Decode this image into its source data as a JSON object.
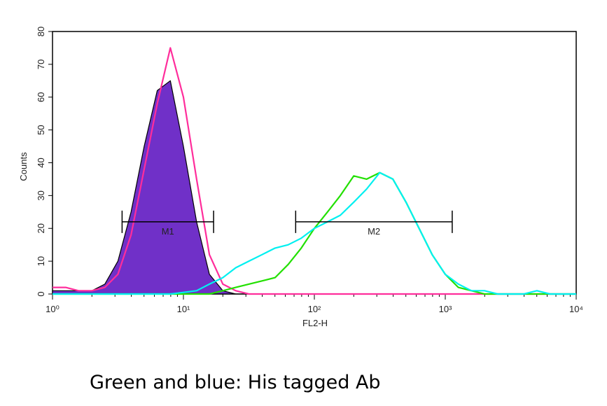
{
  "chart_data": {
    "type": "histogram",
    "xlabel": "FL2-H",
    "ylabel": "Counts",
    "caption": "Green and blue: His tagged Ab",
    "xscale": "log",
    "xlim": [
      1,
      10000
    ],
    "xticks": [
      {
        "value": 1,
        "label": "10⁰"
      },
      {
        "value": 10,
        "label": "10¹"
      },
      {
        "value": 100,
        "label": "10²"
      },
      {
        "value": 1000,
        "label": "10³"
      },
      {
        "value": 10000,
        "label": "10⁴"
      }
    ],
    "ylim": [
      0,
      80
    ],
    "yticks": [
      0,
      10,
      20,
      30,
      40,
      50,
      60,
      70,
      80
    ],
    "x": [
      1,
      1.26,
      1.58,
      2,
      2.51,
      3.16,
      3.98,
      5.01,
      6.31,
      7.94,
      10,
      12.6,
      15.8,
      20,
      25.1,
      31.6,
      39.8,
      50.1,
      63.1,
      79.4,
      100,
      126,
      158,
      200,
      251,
      316,
      398,
      501,
      631,
      794,
      1000,
      1259,
      1585,
      1995,
      2512,
      3162,
      3981,
      5012,
      6310,
      7943,
      10000
    ],
    "series": [
      {
        "color": "#7030c8",
        "filled": true,
        "values": [
          1,
          1,
          1,
          1,
          3,
          10,
          25,
          45,
          62,
          65,
          45,
          22,
          6,
          1,
          0,
          0,
          0,
          0,
          0,
          0,
          0,
          0,
          0,
          0,
          0,
          0,
          0,
          0,
          0,
          0,
          0,
          0,
          0,
          0,
          0,
          0,
          0,
          0,
          0,
          0,
          0
        ]
      },
      {
        "color": "#ff2d9b",
        "filled": false,
        "values": [
          2,
          2,
          1,
          1,
          2,
          6,
          18,
          38,
          58,
          75,
          60,
          35,
          12,
          3,
          1,
          0,
          0,
          0,
          0,
          0,
          0,
          0,
          0,
          0,
          0,
          0,
          0,
          0,
          0,
          0,
          0,
          0,
          0,
          0,
          0,
          0,
          0,
          0,
          0,
          0,
          0
        ]
      },
      {
        "color": "#22e000",
        "filled": false,
        "values": [
          0,
          0,
          0,
          0,
          0,
          0,
          0,
          0,
          0,
          0,
          0,
          0,
          0,
          1,
          2,
          3,
          4,
          5,
          9,
          14,
          20,
          25,
          30,
          36,
          35,
          37,
          35,
          28,
          20,
          12,
          6,
          2,
          1,
          0,
          0,
          0,
          0,
          0,
          0,
          0,
          0
        ]
      },
      {
        "color": "#00f0f0",
        "filled": false,
        "values": [
          0,
          0,
          0,
          0,
          0,
          0,
          0,
          0,
          0,
          0,
          0.5,
          1,
          3,
          5,
          8,
          10,
          12,
          14,
          15,
          17,
          20,
          22,
          24,
          28,
          32,
          37,
          35,
          28,
          20,
          12,
          6,
          3,
          1,
          1,
          0,
          0,
          0,
          1,
          0,
          0,
          0
        ]
      }
    ],
    "markers": [
      {
        "label": "M1",
        "x": [
          3.4,
          17
        ],
        "y": 22
      },
      {
        "label": "M2",
        "x": [
          72,
          1130
        ],
        "y": 22
      }
    ]
  }
}
